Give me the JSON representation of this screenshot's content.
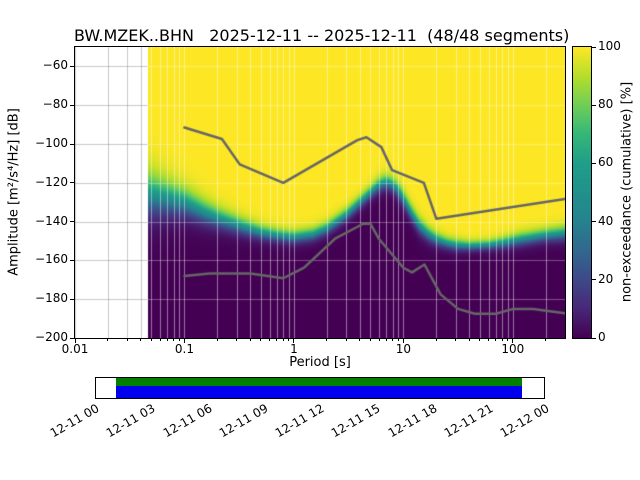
{
  "title": "BW.MZEK..BHN   2025-12-11 -- 2025-12-11  (48/48 segments)",
  "chart_data": {
    "type": "heatmap",
    "title": "BW.MZEK..BHN   2025-12-11 -- 2025-12-11  (48/48 segments)",
    "xlabel": "Period [s]",
    "ylabel": "Amplitude [m²/s⁴/Hz] [dB]",
    "x_scale": "log",
    "xlim": [
      0.01,
      300
    ],
    "ylim": [
      -200,
      -50
    ],
    "grid": true,
    "x_ticks": [
      {
        "v": 0.01,
        "label": "0.01"
      },
      {
        "v": 0.1,
        "label": "0.1"
      },
      {
        "v": 1,
        "label": "1"
      },
      {
        "v": 10,
        "label": "10"
      },
      {
        "v": 100,
        "label": "100"
      }
    ],
    "y_ticks": [
      {
        "v": -60,
        "label": "−60"
      },
      {
        "v": -80,
        "label": "−80"
      },
      {
        "v": -100,
        "label": "−100"
      },
      {
        "v": -120,
        "label": "−120"
      },
      {
        "v": -140,
        "label": "−140"
      },
      {
        "v": -160,
        "label": "−160"
      },
      {
        "v": -180,
        "label": "−180"
      },
      {
        "v": -200,
        "label": "−200"
      }
    ],
    "data_period_min": 0.046,
    "cumulative_field": {
      "description": "non-exceedance cumulative % field: 50% boundary amplitude (dB) and transition half-width per period; 100% (yellow) above, 0% (dark) below",
      "periods": [
        0.046,
        0.07,
        0.1,
        0.15,
        0.2,
        0.3,
        0.5,
        0.7,
        1,
        1.5,
        2,
        3,
        4,
        5,
        6,
        7,
        8,
        9,
        10,
        12,
        14,
        17,
        20,
        25,
        30,
        40,
        60,
        80,
        120,
        200,
        300
      ],
      "center_db": [
        -126,
        -128,
        -130,
        -135,
        -138,
        -141.5,
        -145.5,
        -147,
        -148,
        -146.5,
        -143.5,
        -136.5,
        -130,
        -125,
        -121,
        -119.5,
        -121,
        -124,
        -128,
        -136,
        -142,
        -146.5,
        -149,
        -151,
        -152,
        -152.5,
        -152,
        -151,
        -149,
        -147,
        -146
      ],
      "halfwidth_db": [
        14,
        11,
        9,
        7.5,
        6.5,
        5.5,
        4.5,
        4,
        4,
        4,
        4,
        4,
        4,
        4,
        4.5,
        4.5,
        4.5,
        5,
        5,
        5,
        5,
        4.5,
        4,
        3.5,
        3.5,
        3,
        3,
        3.5,
        4,
        4,
        4.5
      ]
    },
    "colormap": {
      "name": "viridis",
      "stops": [
        [
          0,
          "#440154"
        ],
        [
          0.1,
          "#482878"
        ],
        [
          0.2,
          "#3e4a89"
        ],
        [
          0.3,
          "#31688e"
        ],
        [
          0.4,
          "#26828e"
        ],
        [
          0.5,
          "#21918c"
        ],
        [
          0.6,
          "#1f9e89"
        ],
        [
          0.7,
          "#35b779"
        ],
        [
          0.8,
          "#6ece58"
        ],
        [
          0.9,
          "#b5de2b"
        ],
        [
          1,
          "#fde725"
        ]
      ]
    },
    "colorbar": {
      "label": "non-exceedance (cumulative) [%]",
      "ticks": [
        {
          "v": 0,
          "label": "0"
        },
        {
          "v": 20,
          "label": "20"
        },
        {
          "v": 40,
          "label": "40"
        },
        {
          "v": 60,
          "label": "60"
        },
        {
          "v": 80,
          "label": "80"
        },
        {
          "v": 100,
          "label": "100"
        }
      ]
    },
    "noise_models": {
      "color": "#666666",
      "high": {
        "name": "NHNM",
        "points": [
          [
            0.1,
            -91.5
          ],
          [
            0.22,
            -97.4
          ],
          [
            0.32,
            -110.5
          ],
          [
            0.8,
            -120
          ],
          [
            3.8,
            -98
          ],
          [
            4.6,
            -96.5
          ],
          [
            6.3,
            -101.6
          ],
          [
            7.9,
            -113.5
          ],
          [
            15.4,
            -120
          ],
          [
            20,
            -138.5
          ],
          [
            300,
            -128.3
          ]
        ]
      },
      "low": {
        "name": "NLNM",
        "points": [
          [
            0.1,
            -168
          ],
          [
            0.17,
            -166.7
          ],
          [
            0.4,
            -166.7
          ],
          [
            0.8,
            -169.2
          ],
          [
            1.24,
            -163.7
          ],
          [
            2.4,
            -148.6
          ],
          [
            4.3,
            -141.1
          ],
          [
            5,
            -141.1
          ],
          [
            6,
            -149
          ],
          [
            10,
            -163.8
          ],
          [
            12,
            -166.2
          ],
          [
            15.6,
            -162.1
          ],
          [
            21.9,
            -177.5
          ],
          [
            31.6,
            -185
          ],
          [
            45,
            -187.5
          ],
          [
            70,
            -187.5
          ],
          [
            101,
            -185
          ],
          [
            154,
            -185
          ],
          [
            300,
            -187.2
          ]
        ]
      }
    }
  },
  "timeline": {
    "labels": [
      "12-11 00",
      "12-11 03",
      "12-11 06",
      "12-11 09",
      "12-11 12",
      "12-11 15",
      "12-11 18",
      "12-11 21",
      "12-12 00"
    ],
    "coverage": {
      "start_frac": 0.044,
      "end_frac": 0.951,
      "top_color": "#008000",
      "bottom_color": "#0000ee"
    }
  }
}
